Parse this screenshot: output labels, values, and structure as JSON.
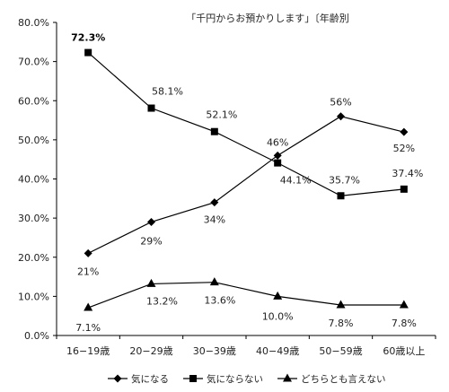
{
  "chart_data": {
    "type": "line",
    "title": "「千円からお預かりします」〔年齢別",
    "categories": [
      "16−19歳",
      "20−29歳",
      "30−39歳",
      "40−49歳",
      "50−59歳",
      "60歳以上"
    ],
    "ylim": [
      0,
      80
    ],
    "yticks": [
      "0.0%",
      "10.0%",
      "20.0%",
      "30.0%",
      "40.0%",
      "50.0%",
      "60.0%",
      "70.0%",
      "80.0%"
    ],
    "grid": false,
    "legend_position": "bottom",
    "series": [
      {
        "name": "気になる",
        "marker": "diamond",
        "values": [
          21,
          29,
          34,
          46,
          56,
          52
        ],
        "labels": [
          "21%",
          "29%",
          "34%",
          "46%",
          "56%",
          "52%"
        ]
      },
      {
        "name": "気にならない",
        "marker": "square",
        "values": [
          72.3,
          58.1,
          52.1,
          44.1,
          35.7,
          37.4
        ],
        "labels": [
          "72.3%",
          "58.1%",
          "52.1%",
          "44.1%",
          "35.7%",
          "37.4%"
        ]
      },
      {
        "name": "どちらとも言えない",
        "marker": "triangle",
        "values": [
          7.1,
          13.2,
          13.6,
          10.0,
          7.8,
          7.8
        ],
        "labels": [
          "7.1%",
          "13.2%",
          "13.6%",
          "10.0%",
          "7.8%",
          "7.8%"
        ]
      }
    ]
  }
}
